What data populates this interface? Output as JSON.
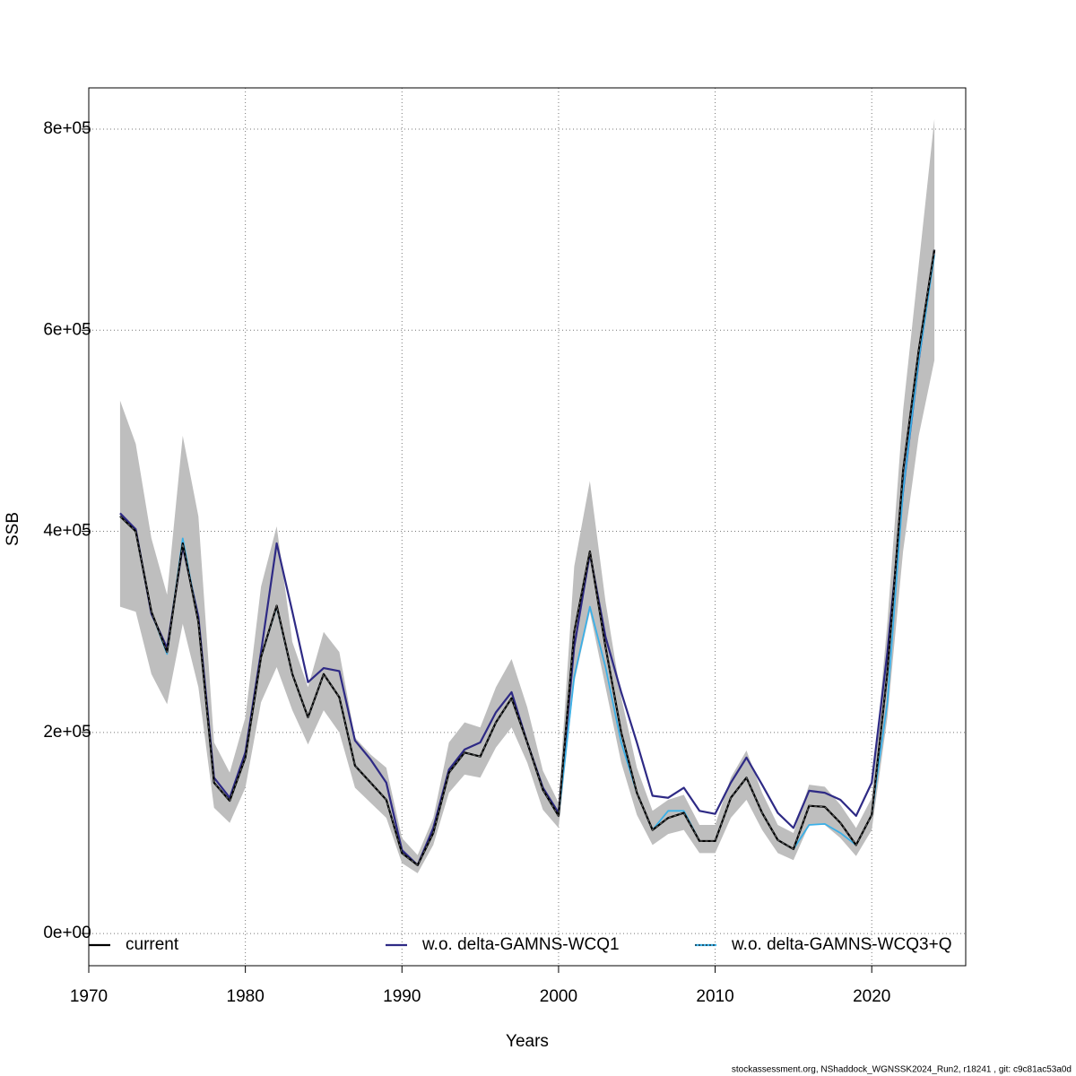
{
  "chart_data": {
    "type": "line",
    "xlabel": "Years",
    "ylabel": "SSB",
    "footnote": "stockassessment.org, NShaddock_WGNSSK2024_Run2, r18241 , git: c9c81ac53a0d",
    "xlim": [
      1970,
      2026
    ],
    "ylim": [
      -32000,
      841000
    ],
    "xticks": [
      1970,
      1980,
      1990,
      2000,
      2010,
      2020
    ],
    "yticks": [
      {
        "value": 0,
        "label": "0e+00"
      },
      {
        "value": 200000,
        "label": "2e+05"
      },
      {
        "value": 400000,
        "label": "4e+05"
      },
      {
        "value": 600000,
        "label": "6e+05"
      },
      {
        "value": 800000,
        "label": "8e+05"
      }
    ],
    "grid": true,
    "x": [
      1972,
      1973,
      1974,
      1975,
      1976,
      1977,
      1978,
      1979,
      1980,
      1981,
      1982,
      1983,
      1984,
      1985,
      1986,
      1987,
      1988,
      1989,
      1990,
      1991,
      1992,
      1993,
      1994,
      1995,
      1996,
      1997,
      1998,
      1999,
      2000,
      2001,
      2002,
      2003,
      2004,
      2005,
      2006,
      2007,
      2008,
      2009,
      2010,
      2011,
      2012,
      2013,
      2014,
      2015,
      2016,
      2017,
      2018,
      2019,
      2020,
      2021,
      2022,
      2023,
      2024
    ],
    "band": {
      "color": "#bebebe",
      "upper": [
        530000,
        487000,
        393000,
        337000,
        495000,
        415000,
        190000,
        160000,
        215000,
        345000,
        405000,
        290000,
        245000,
        300000,
        280000,
        195000,
        178000,
        165000,
        95000,
        78000,
        115000,
        190000,
        210000,
        205000,
        245000,
        273000,
        225000,
        162000,
        130000,
        365000,
        450000,
        330000,
        235000,
        165000,
        122000,
        133000,
        138000,
        108000,
        108000,
        155000,
        182000,
        140000,
        108000,
        100000,
        148000,
        146000,
        128000,
        105000,
        135000,
        310000,
        520000,
        665000,
        810000
      ],
      "lower": [
        325000,
        320000,
        258000,
        228000,
        308000,
        245000,
        125000,
        110000,
        145000,
        230000,
        265000,
        222000,
        188000,
        222000,
        200000,
        145000,
        130000,
        115000,
        70000,
        60000,
        88000,
        140000,
        158000,
        155000,
        185000,
        205000,
        170000,
        123000,
        105000,
        250000,
        320000,
        245000,
        170000,
        118000,
        88000,
        99000,
        103000,
        80000,
        80000,
        115000,
        133000,
        103000,
        80000,
        73000,
        108000,
        108000,
        95000,
        77000,
        103000,
        215000,
        380000,
        495000,
        570000
      ]
    },
    "series": [
      {
        "name": "current",
        "color": "#000000",
        "values": [
          415000,
          400000,
          320000,
          280000,
          388000,
          310000,
          150000,
          132000,
          175000,
          275000,
          326000,
          258000,
          215000,
          258000,
          235000,
          167000,
          150000,
          133000,
          80000,
          68000,
          100000,
          160000,
          180000,
          176000,
          210000,
          234000,
          190000,
          143000,
          117000,
          300000,
          380000,
          285000,
          200000,
          140000,
          103000,
          115000,
          120000,
          92000,
          92000,
          135000,
          155000,
          120000,
          93000,
          84000,
          127000,
          126000,
          110000,
          88000,
          118000,
          260000,
          460000,
          580000,
          680000
        ]
      },
      {
        "name": "w.o. delta-GAMNS-WCQ1",
        "color": "#2e2a85",
        "values": [
          418000,
          402000,
          318000,
          284000,
          385000,
          315000,
          155000,
          135000,
          180000,
          280000,
          388000,
          320000,
          250000,
          264000,
          261000,
          192000,
          173000,
          150000,
          83000,
          68000,
          105000,
          163000,
          183000,
          190000,
          220000,
          240000,
          190000,
          145000,
          120000,
          285000,
          378000,
          295000,
          240000,
          190000,
          137000,
          135000,
          145000,
          122000,
          119000,
          150000,
          175000,
          148000,
          120000,
          105000,
          142000,
          140000,
          133000,
          117000,
          150000,
          280000,
          440000,
          570000,
          680000
        ]
      },
      {
        "name": "w.o. delta-GAMNS-WCQ3+Q",
        "color": "#3ab0e8",
        "values": [
          415000,
          400000,
          320000,
          278000,
          393000,
          310000,
          150000,
          132000,
          175000,
          275000,
          325000,
          258000,
          215000,
          258000,
          235000,
          167000,
          150000,
          133000,
          80000,
          68000,
          100000,
          160000,
          180000,
          176000,
          210000,
          234000,
          190000,
          143000,
          117000,
          255000,
          325000,
          265000,
          190000,
          140000,
          103000,
          122000,
          122000,
          92000,
          92000,
          135000,
          155000,
          120000,
          93000,
          84000,
          108000,
          109000,
          100000,
          88000,
          118000,
          230000,
          440000,
          570000,
          675000
        ]
      }
    ]
  }
}
